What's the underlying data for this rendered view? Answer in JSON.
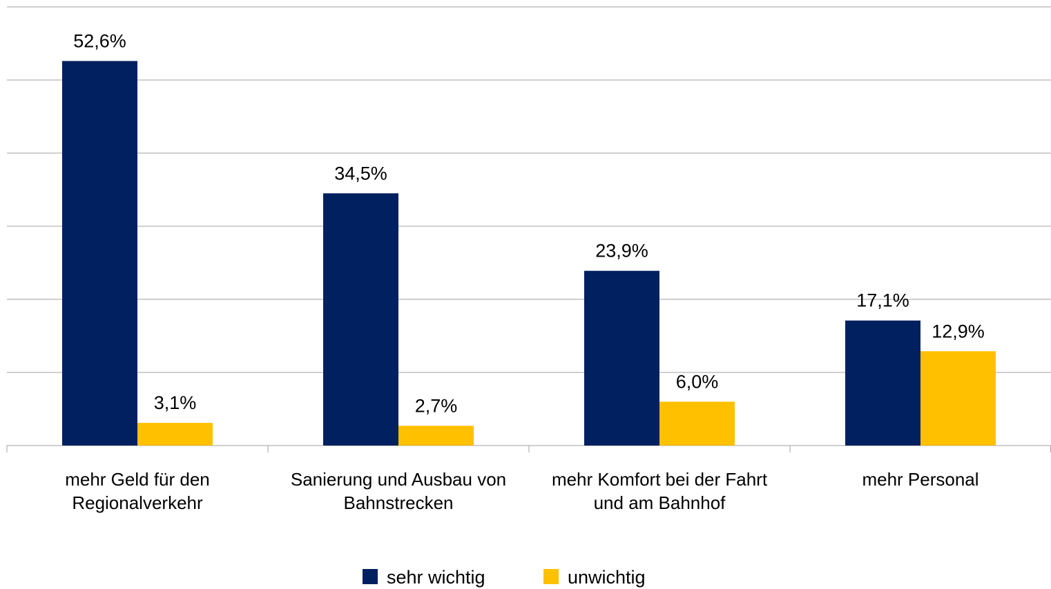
{
  "chart_data": {
    "type": "bar",
    "categories": [
      "mehr Geld für den Regionalverkehr",
      "Sanierung und Ausbau von Bahnstrecken",
      "mehr Komfort bei der Fahrt und am Bahnhof",
      "mehr Personal"
    ],
    "series": [
      {
        "name": "sehr wichtig",
        "color": "#002060",
        "values": [
          52.6,
          34.5,
          23.9,
          17.1
        ],
        "value_labels": [
          "52,6%",
          "34,5%",
          "23,9%",
          "17,1%"
        ]
      },
      {
        "name": "unwichtig",
        "color": "#ffc000",
        "values": [
          3.1,
          2.7,
          6.0,
          12.9
        ],
        "value_labels": [
          "3,1%",
          "2,7%",
          "6,0%",
          "12,9%"
        ]
      }
    ],
    "ylim": [
      0,
      60
    ],
    "yticks": [
      0,
      10,
      20,
      30,
      40,
      50,
      60
    ],
    "grid": true,
    "legend": "bottom"
  }
}
